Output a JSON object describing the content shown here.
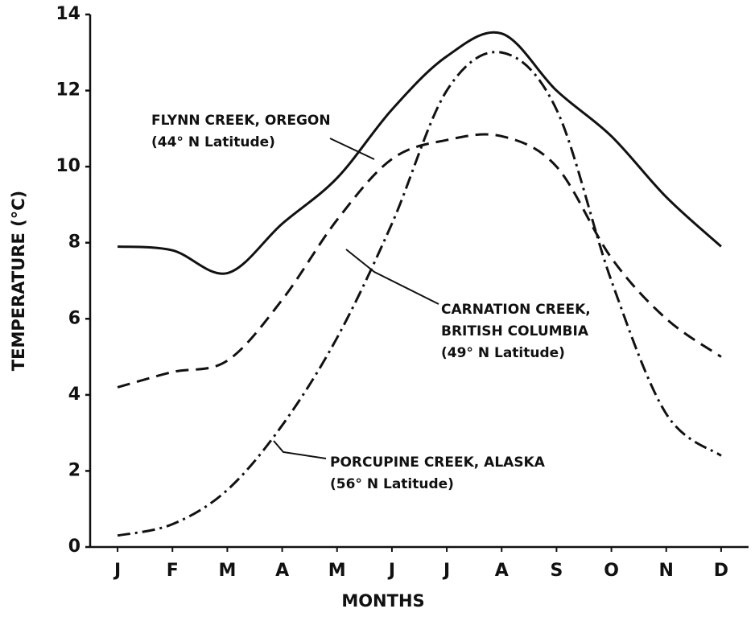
{
  "chart_data": {
    "type": "line",
    "x_label": "MONTHS",
    "y_label": "TEMPERATURE (°C)",
    "categories": [
      "J",
      "F",
      "M",
      "A",
      "M",
      "J",
      "J",
      "A",
      "S",
      "O",
      "N",
      "D"
    ],
    "series": [
      {
        "name": "FLYNN CREEK, OREGON",
        "color": "#111111",
        "dash": "solid",
        "values": [
          7.9,
          7.8,
          7.2,
          8.5,
          9.7,
          11.5,
          12.9,
          13.5,
          12.0,
          10.8,
          9.2,
          7.9
        ]
      },
      {
        "name": "CARNATION CREEK, BRITISH COLUMBIA",
        "color": "#111111",
        "dash": "dashed",
        "values": [
          4.2,
          4.6,
          4.9,
          6.5,
          8.6,
          10.2,
          10.7,
          10.8,
          10.0,
          7.6,
          6.0,
          5.0
        ]
      },
      {
        "name": "PORCUPINE CREEK, ALASKA",
        "color": "#111111",
        "dash": "dashdot",
        "values": [
          0.3,
          0.6,
          1.5,
          3.2,
          5.5,
          8.5,
          12.0,
          13.0,
          11.5,
          7.0,
          3.5,
          2.4
        ]
      }
    ],
    "annotations": [
      {
        "lines": [
          "FLYNN CREEK, OREGON",
          "(44° N Latitude)"
        ]
      },
      {
        "lines": [
          "CARNATION CREEK,",
          "BRITISH COLUMBIA",
          "(49° N Latitude)"
        ]
      },
      {
        "lines": [
          "PORCUPINE CREEK, ALASKA",
          "(56° N Latitude)"
        ]
      }
    ],
    "ylim": [
      0,
      14
    ],
    "yticks": [
      0,
      2,
      4,
      6,
      8,
      10,
      12,
      14
    ],
    "grid": false,
    "legend": false
  }
}
